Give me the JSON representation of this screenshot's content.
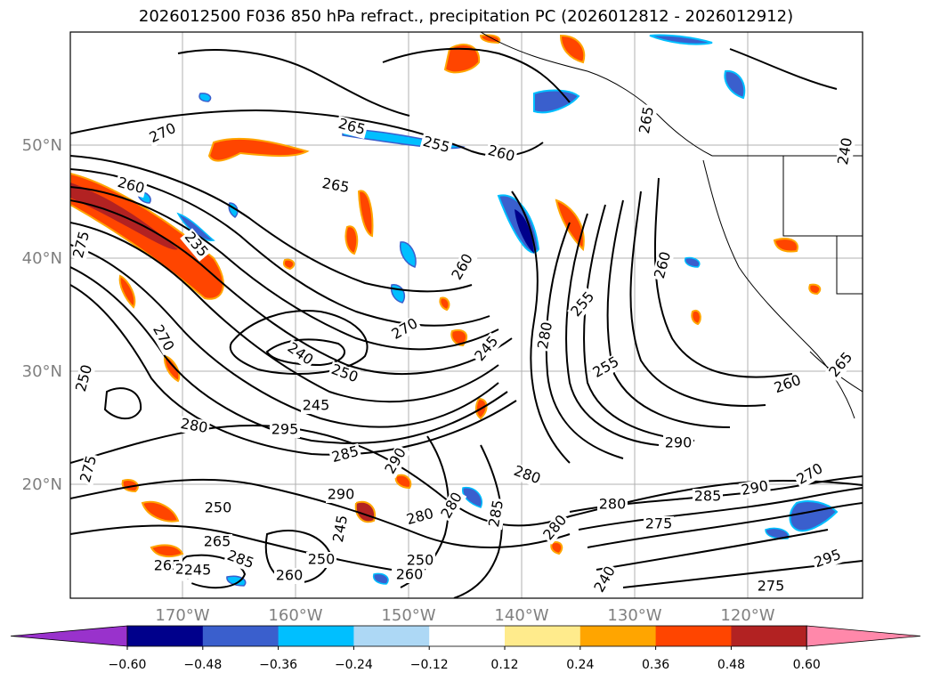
{
  "title": "2026012500 F036 850 hPa refract., precipitation PC (2026012812 - 2026012912)",
  "map": {
    "lat_ticks": [
      "50°N",
      "40°N",
      "30°N",
      "20°N"
    ],
    "lon_ticks": [
      "170°W",
      "160°W",
      "150°W",
      "140°W",
      "130°W",
      "120°W"
    ],
    "contour_labels": [
      "270",
      "265",
      "260",
      "255",
      "265",
      "260",
      "275",
      "235",
      "270",
      "260",
      "270",
      "240",
      "250",
      "255",
      "245",
      "260",
      "245",
      "280",
      "255",
      "250",
      "265",
      "280",
      "295",
      "285",
      "290",
      "275",
      "250",
      "280",
      "280",
      "285",
      "280",
      "265",
      "280",
      "275",
      "280",
      "285",
      "260",
      "250",
      "245",
      "240",
      "265",
      "270",
      "250",
      "260",
      "290",
      "285",
      "290",
      "270",
      "295",
      "275",
      "290",
      "240",
      "245",
      "260",
      "265",
      "240"
    ]
  },
  "colorbar": {
    "ticks": [
      "−0.60",
      "−0.48",
      "−0.36",
      "−0.24",
      "−0.12",
      "0.12",
      "0.24",
      "0.36",
      "0.48",
      "0.60"
    ],
    "colors": [
      "#9932cc",
      "#00008b",
      "#3a5fcd",
      "#00bfff",
      "#add8f5",
      "#ffffff",
      "#ffeb8c",
      "#ffa500",
      "#ff4500",
      "#b22222",
      "#ff88aa"
    ]
  }
}
